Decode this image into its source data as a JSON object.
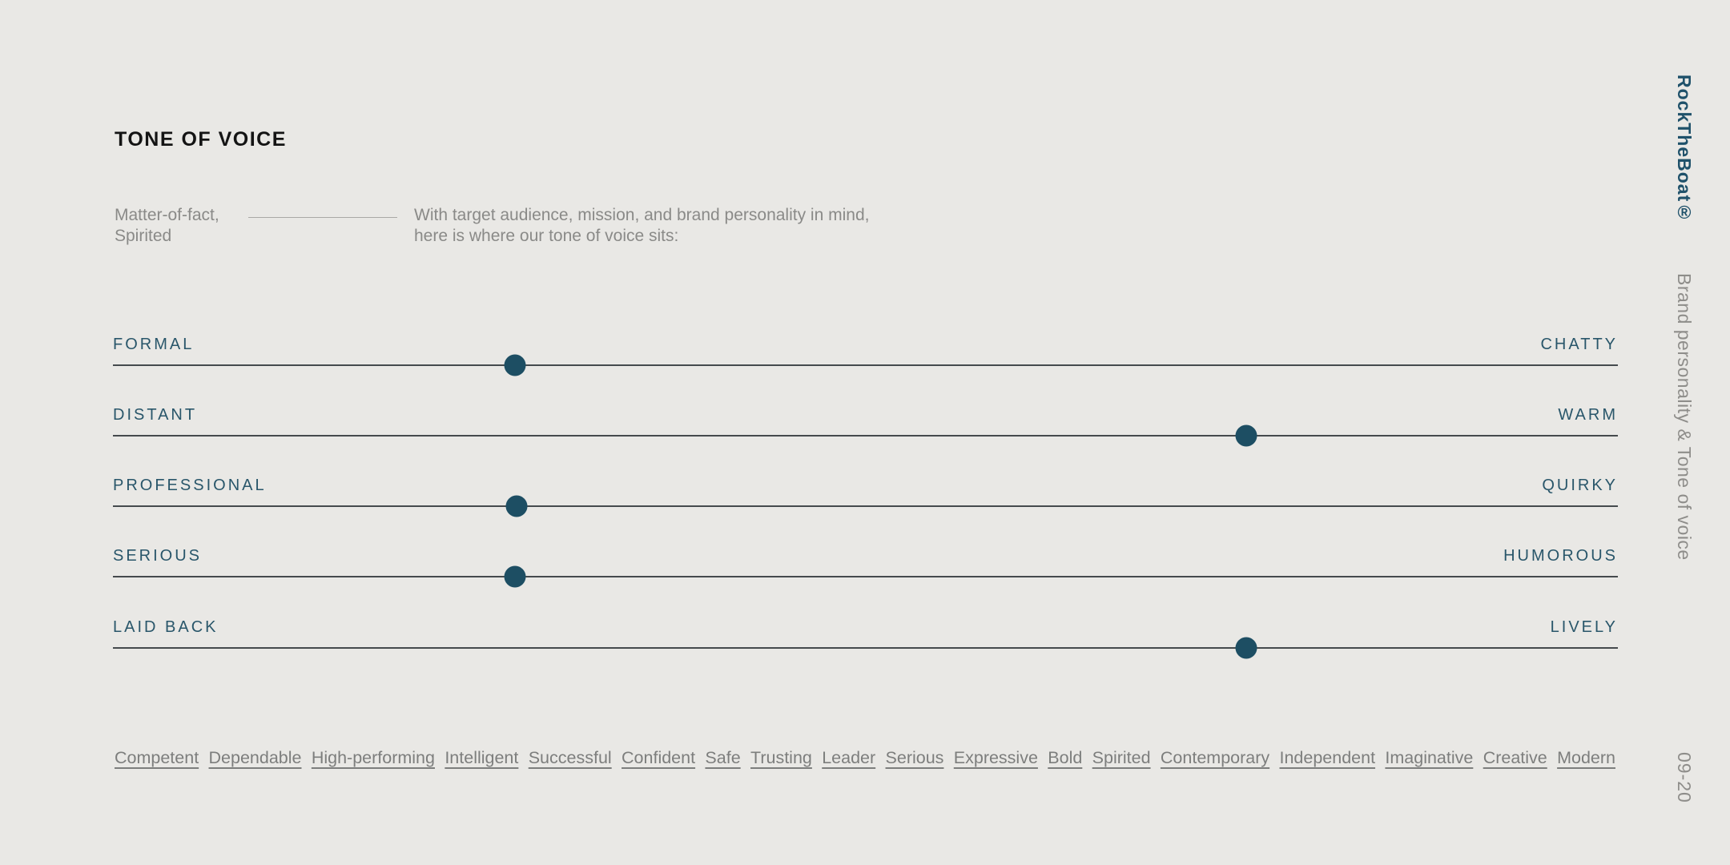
{
  "page": {
    "title": "TONE OF VOICE",
    "intro_label_line1": "Matter-of-fact,",
    "intro_label_line2": "Spirited",
    "intro_text_line1": "With target audience, mission, and brand personality in mind,",
    "intro_text_line2": "here is where our tone of voice sits:"
  },
  "sliders": [
    {
      "left": "FORMAL",
      "right": "CHATTY",
      "value_percent": 26.7
    },
    {
      "left": "DISTANT",
      "right": "WARM",
      "value_percent": 75.3
    },
    {
      "left": "PROFESSIONAL",
      "right": "QUIRKY",
      "value_percent": 26.8
    },
    {
      "left": "SERIOUS",
      "right": "HUMOROUS",
      "value_percent": 26.7
    },
    {
      "left": "LAID BACK",
      "right": "LIVELY",
      "value_percent": 75.3
    }
  ],
  "traits": [
    "Competent",
    "Dependable",
    "High-performing",
    "Intelligent",
    "Successful",
    "Confident",
    "Safe",
    "Trusting",
    "Leader",
    "Serious",
    "Expressive",
    "Bold",
    "Spirited",
    "Contemporary",
    "Independent",
    "Imaginative",
    "Creative",
    "Modern"
  ],
  "sidebar": {
    "brand": "RockTheBoat®",
    "section": "Brand personality & Tone of voice",
    "page_number": "09-20"
  },
  "colors": {
    "background": "#e9e8e5",
    "label_teal": "#29566a",
    "dot_teal": "#1d4e63",
    "title_black": "#141414",
    "body_gray": "#8a8a88",
    "trait_gray": "#7d7e7d",
    "slider_line": "#454a4d",
    "connector_line": "#a9a8a5"
  }
}
